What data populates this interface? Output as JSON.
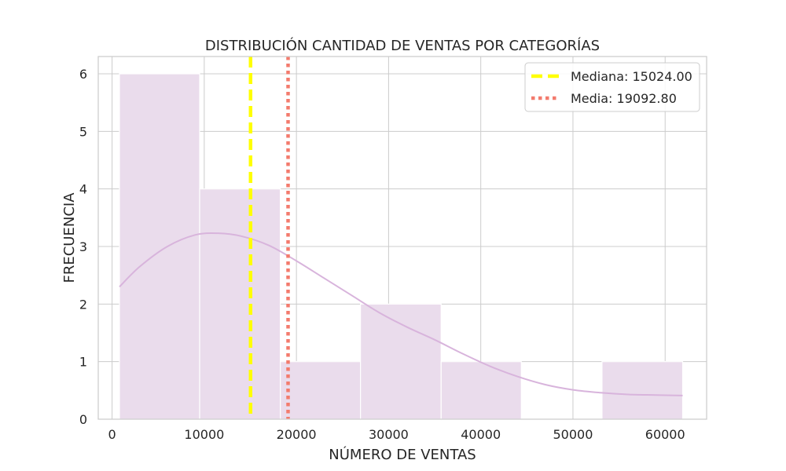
{
  "chart_data": {
    "type": "bar",
    "title": "DISTRIBUCIÓN CANTIDAD DE VENTAS POR CATEGORÍAS",
    "xlabel": "NÚMERO DE VENTAS",
    "ylabel": "FRECUENCIA",
    "xlim": [
      -1500,
      64500
    ],
    "ylim": [
      0,
      6.3
    ],
    "xticks": [
      0,
      10000,
      20000,
      30000,
      40000,
      50000,
      60000
    ],
    "yticks": [
      0,
      1,
      2,
      3,
      4,
      5,
      6
    ],
    "grid": true,
    "bins": [
      {
        "x0": 800,
        "x1": 9500,
        "count": 6
      },
      {
        "x0": 9500,
        "x1": 18250,
        "count": 4
      },
      {
        "x0": 18250,
        "x1": 26950,
        "count": 1
      },
      {
        "x0": 26950,
        "x1": 35700,
        "count": 2
      },
      {
        "x0": 35700,
        "x1": 44400,
        "count": 1
      },
      {
        "x0": 44400,
        "x1": 53150,
        "count": 0
      },
      {
        "x0": 53150,
        "x1": 61900,
        "count": 1
      }
    ],
    "kde": {
      "x": [
        800,
        3000,
        6000,
        9000,
        11500,
        14000,
        17000,
        20000,
        23000,
        26000,
        29000,
        32000,
        35000,
        38000,
        41000,
        44000,
        47000,
        50000,
        53000,
        56000,
        59000,
        61900
      ],
      "y": [
        2.3,
        2.65,
        3.0,
        3.2,
        3.23,
        3.18,
        3.02,
        2.75,
        2.45,
        2.15,
        1.85,
        1.6,
        1.38,
        1.14,
        0.92,
        0.74,
        0.6,
        0.51,
        0.46,
        0.43,
        0.42,
        0.41
      ]
    },
    "lines": [
      {
        "name": "Mediana: 15024.00",
        "x": 15024.0,
        "style": "dashed",
        "color": "#ffff00"
      },
      {
        "name": "Media: 19092.80",
        "x": 19092.8,
        "style": "dotted",
        "color": "#f37b6d"
      }
    ],
    "legend_position": "top-right",
    "colors": {
      "bar_fill": "#eadcec",
      "kde_line": "#d8b4dc",
      "grid": "#cccccc",
      "axes": "#cccccc",
      "text": "#262626"
    }
  }
}
